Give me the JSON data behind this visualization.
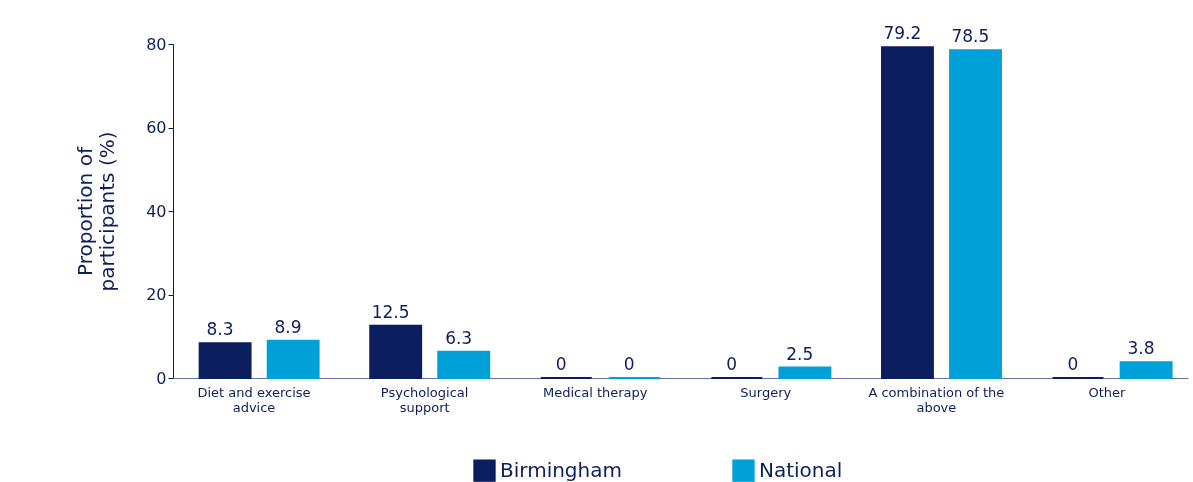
{
  "chart_data": {
    "type": "bar",
    "ylabel": "Proportion of\nparticipants (%)",
    "categories": [
      "Diet and exercise\nadvice",
      "Psychological\nsupport",
      "Medical therapy",
      "Surgery",
      "A combination of the\nabove",
      "Other"
    ],
    "series": [
      {
        "name": "Birmingham",
        "color": "#0b1f5e",
        "values": [
          8.3,
          12.5,
          0,
          0,
          79.2,
          0
        ]
      },
      {
        "name": "National",
        "color": "#00a0d9",
        "values": [
          8.9,
          6.3,
          0,
          2.5,
          78.5,
          3.8
        ]
      }
    ],
    "ylim": [
      0,
      80
    ],
    "yticks": [
      0,
      20,
      40,
      60,
      80
    ],
    "grid": false,
    "legend": "bottom",
    "data_labels": true
  }
}
